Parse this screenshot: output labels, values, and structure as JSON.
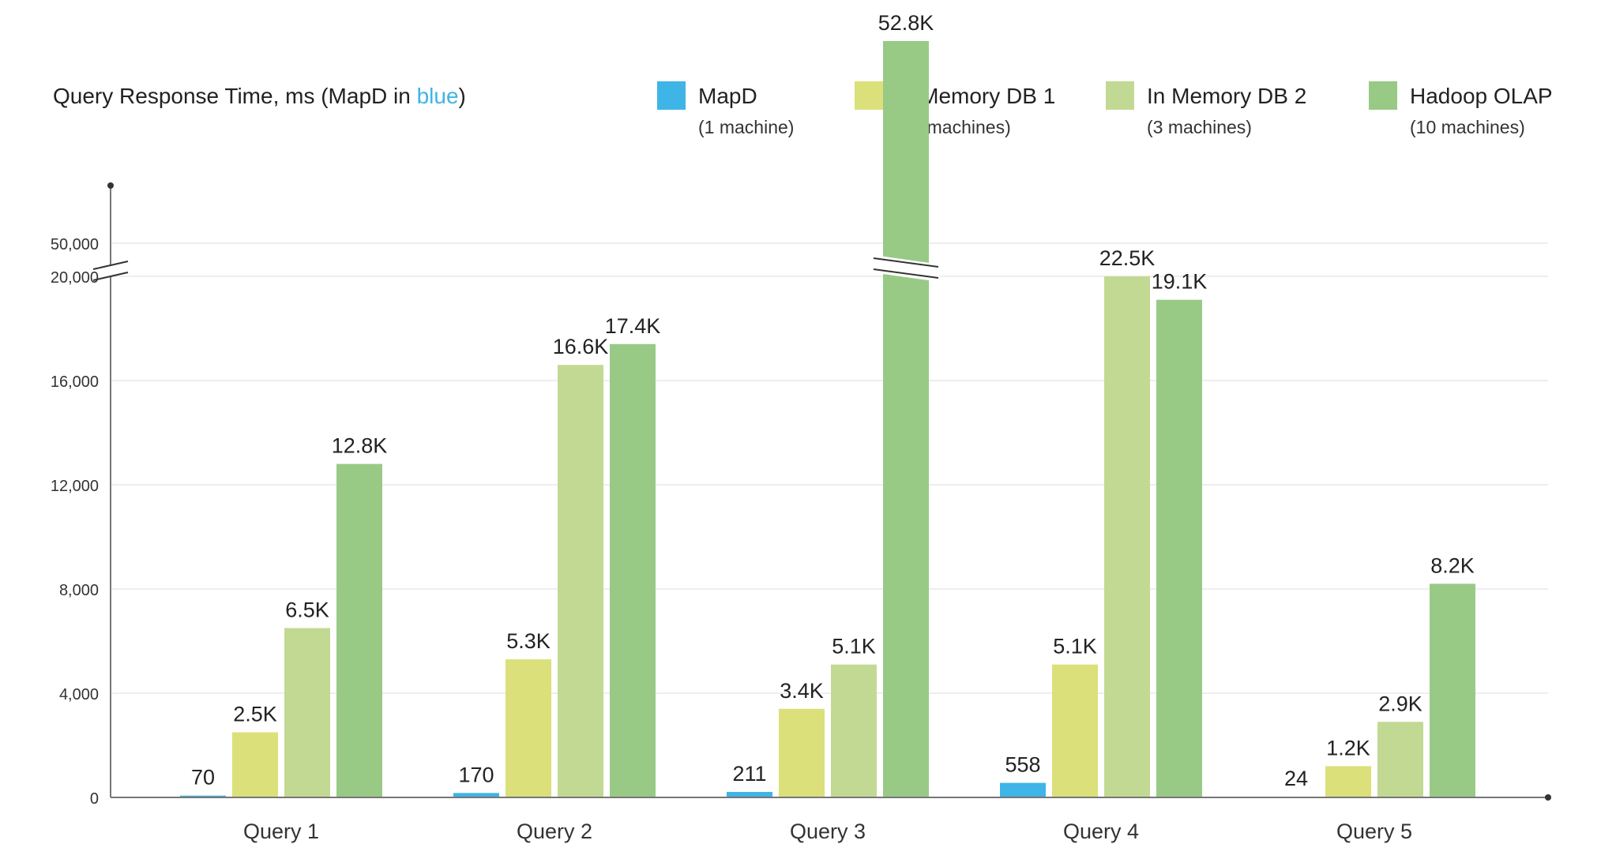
{
  "chart_data": {
    "type": "bar",
    "title_prefix": "Query Response Time, ms  (MapD in ",
    "title_highlight": "blue",
    "title_suffix": ")",
    "categories": [
      "Query 1",
      "Query 2",
      "Query 3",
      "Query 4",
      "Query 5"
    ],
    "series": [
      {
        "name": "MapD",
        "subtitle": "(1 machine)",
        "color": "#3fb4e6",
        "values": [
          70,
          170,
          211,
          558,
          24
        ],
        "labels": [
          "70",
          "170",
          "211",
          "558",
          "24"
        ]
      },
      {
        "name": "In Memory DB 1",
        "subtitle": "(10 machines)",
        "color": "#dbe07a",
        "values": [
          2500,
          5300,
          3400,
          5100,
          1200
        ],
        "labels": [
          "2.5K",
          "5.3K",
          "3.4K",
          "5.1K",
          "1.2K"
        ]
      },
      {
        "name": "In Memory DB 2",
        "subtitle": "(3 machines)",
        "color": "#c2d993",
        "values": [
          6500,
          16600,
          5100,
          22500,
          2900
        ],
        "labels": [
          "6.5K",
          "16.6K",
          "5.1K",
          "22.5K",
          "2.9K"
        ]
      },
      {
        "name": "Hadoop OLAP",
        "subtitle": "(10 machines)",
        "color": "#98ca86",
        "values": [
          12800,
          17400,
          52800,
          19100,
          8200
        ],
        "labels": [
          "12.8K",
          "17.4K",
          "52.8K",
          "19.1K",
          "8.2K"
        ]
      }
    ],
    "y_ticks": [
      0,
      4000,
      8000,
      12000,
      16000,
      20000,
      50000
    ],
    "y_tick_labels": [
      "0",
      "4,000",
      "8,000",
      "12,000",
      "16,000",
      "20,000",
      "50,000"
    ],
    "ylim": [
      0,
      54000
    ],
    "y_axis_break": [
      20000,
      50000
    ],
    "grid": true,
    "legend_position": "top-right"
  },
  "colors": {
    "title_highlight": "#3fb4e6",
    "axis": "#777777",
    "grid": "#eeeeee",
    "text": "#222222",
    "tick_text": "#333333"
  }
}
